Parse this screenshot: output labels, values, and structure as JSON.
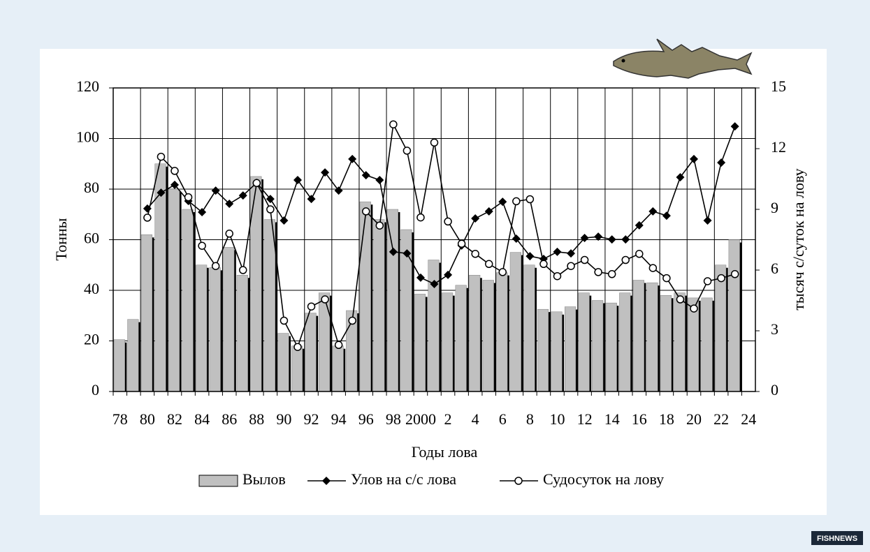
{
  "chart_data": {
    "type": "bar_line",
    "xlabel": "Годы лова",
    "ylabel": "Тонны",
    "y2label": "тысяч с/суток на лову",
    "categories": [
      "78",
      null,
      "80",
      null,
      "82",
      null,
      "84",
      null,
      "86",
      null,
      "88",
      null,
      "90",
      null,
      "92",
      null,
      "94",
      null,
      "96",
      null,
      "98",
      null,
      "2000",
      null,
      "2",
      null,
      "4",
      null,
      "6",
      null,
      "8",
      null,
      "10",
      null,
      "12",
      null,
      "14",
      null,
      "16",
      null,
      "18",
      null,
      "20",
      null,
      "22",
      null,
      "24"
    ],
    "series": [
      {
        "name": "Вылов",
        "type": "bar",
        "color": "#c0c0c0",
        "values": [
          20.5,
          28.5,
          62,
          90,
          80,
          72,
          50,
          49,
          57,
          46,
          85,
          68,
          23,
          18,
          31,
          39,
          18,
          32,
          75,
          68,
          72,
          64,
          38.5,
          52,
          39,
          42,
          46,
          44,
          47,
          55,
          50,
          32.5,
          31.5,
          33.5,
          39,
          36,
          35,
          39,
          44,
          43,
          38,
          39,
          37,
          37,
          50,
          60,
          null
        ]
      },
      {
        "name": "Улов на с/с лова",
        "type": "line",
        "marker": "diamond",
        "color": "#000000",
        "values": [
          null,
          null,
          72.3,
          78.6,
          81.7,
          75.3,
          70.9,
          79.4,
          74.2,
          77.5,
          82.5,
          76.1,
          67.6,
          83.6,
          76.1,
          86.6,
          79.4,
          91.9,
          85.5,
          83.6,
          55.2,
          54.6,
          45,
          42.5,
          46.1,
          57.7,
          68.4,
          71.2,
          75,
          60.4,
          53.5,
          52.4,
          55.2,
          54.6,
          60.7,
          61.2,
          60.1,
          60.1,
          65.7,
          71.2,
          69.5,
          84.7,
          91.9,
          67.6,
          90.5,
          104.8,
          null
        ]
      },
      {
        "name": "Судосуток на лову",
        "type": "line",
        "marker": "circle",
        "axis": "y2",
        "color": "#000000",
        "values": [
          null,
          null,
          8.59,
          11.6,
          10.9,
          9.6,
          7.2,
          6.2,
          7.8,
          6.0,
          10.3,
          9.0,
          3.5,
          2.2,
          4.2,
          4.55,
          2.3,
          3.5,
          8.9,
          8.2,
          13.2,
          11.9,
          8.6,
          12.3,
          8.4,
          7.3,
          6.8,
          6.3,
          5.9,
          9.4,
          9.5,
          6.3,
          5.7,
          6.2,
          6.5,
          5.9,
          5.8,
          6.5,
          6.8,
          6.1,
          5.6,
          4.55,
          4.1,
          5.45,
          5.6,
          5.8,
          null
        ]
      }
    ],
    "ylim": [
      0,
      120
    ],
    "yticks": [
      0,
      20,
      40,
      60,
      80,
      100,
      120
    ],
    "y2lim": [
      0,
      15
    ],
    "y2ticks": [
      0,
      3,
      6,
      9,
      12,
      15
    ],
    "grid": true,
    "legend": "bottom"
  },
  "logo": "FISHNEWS"
}
